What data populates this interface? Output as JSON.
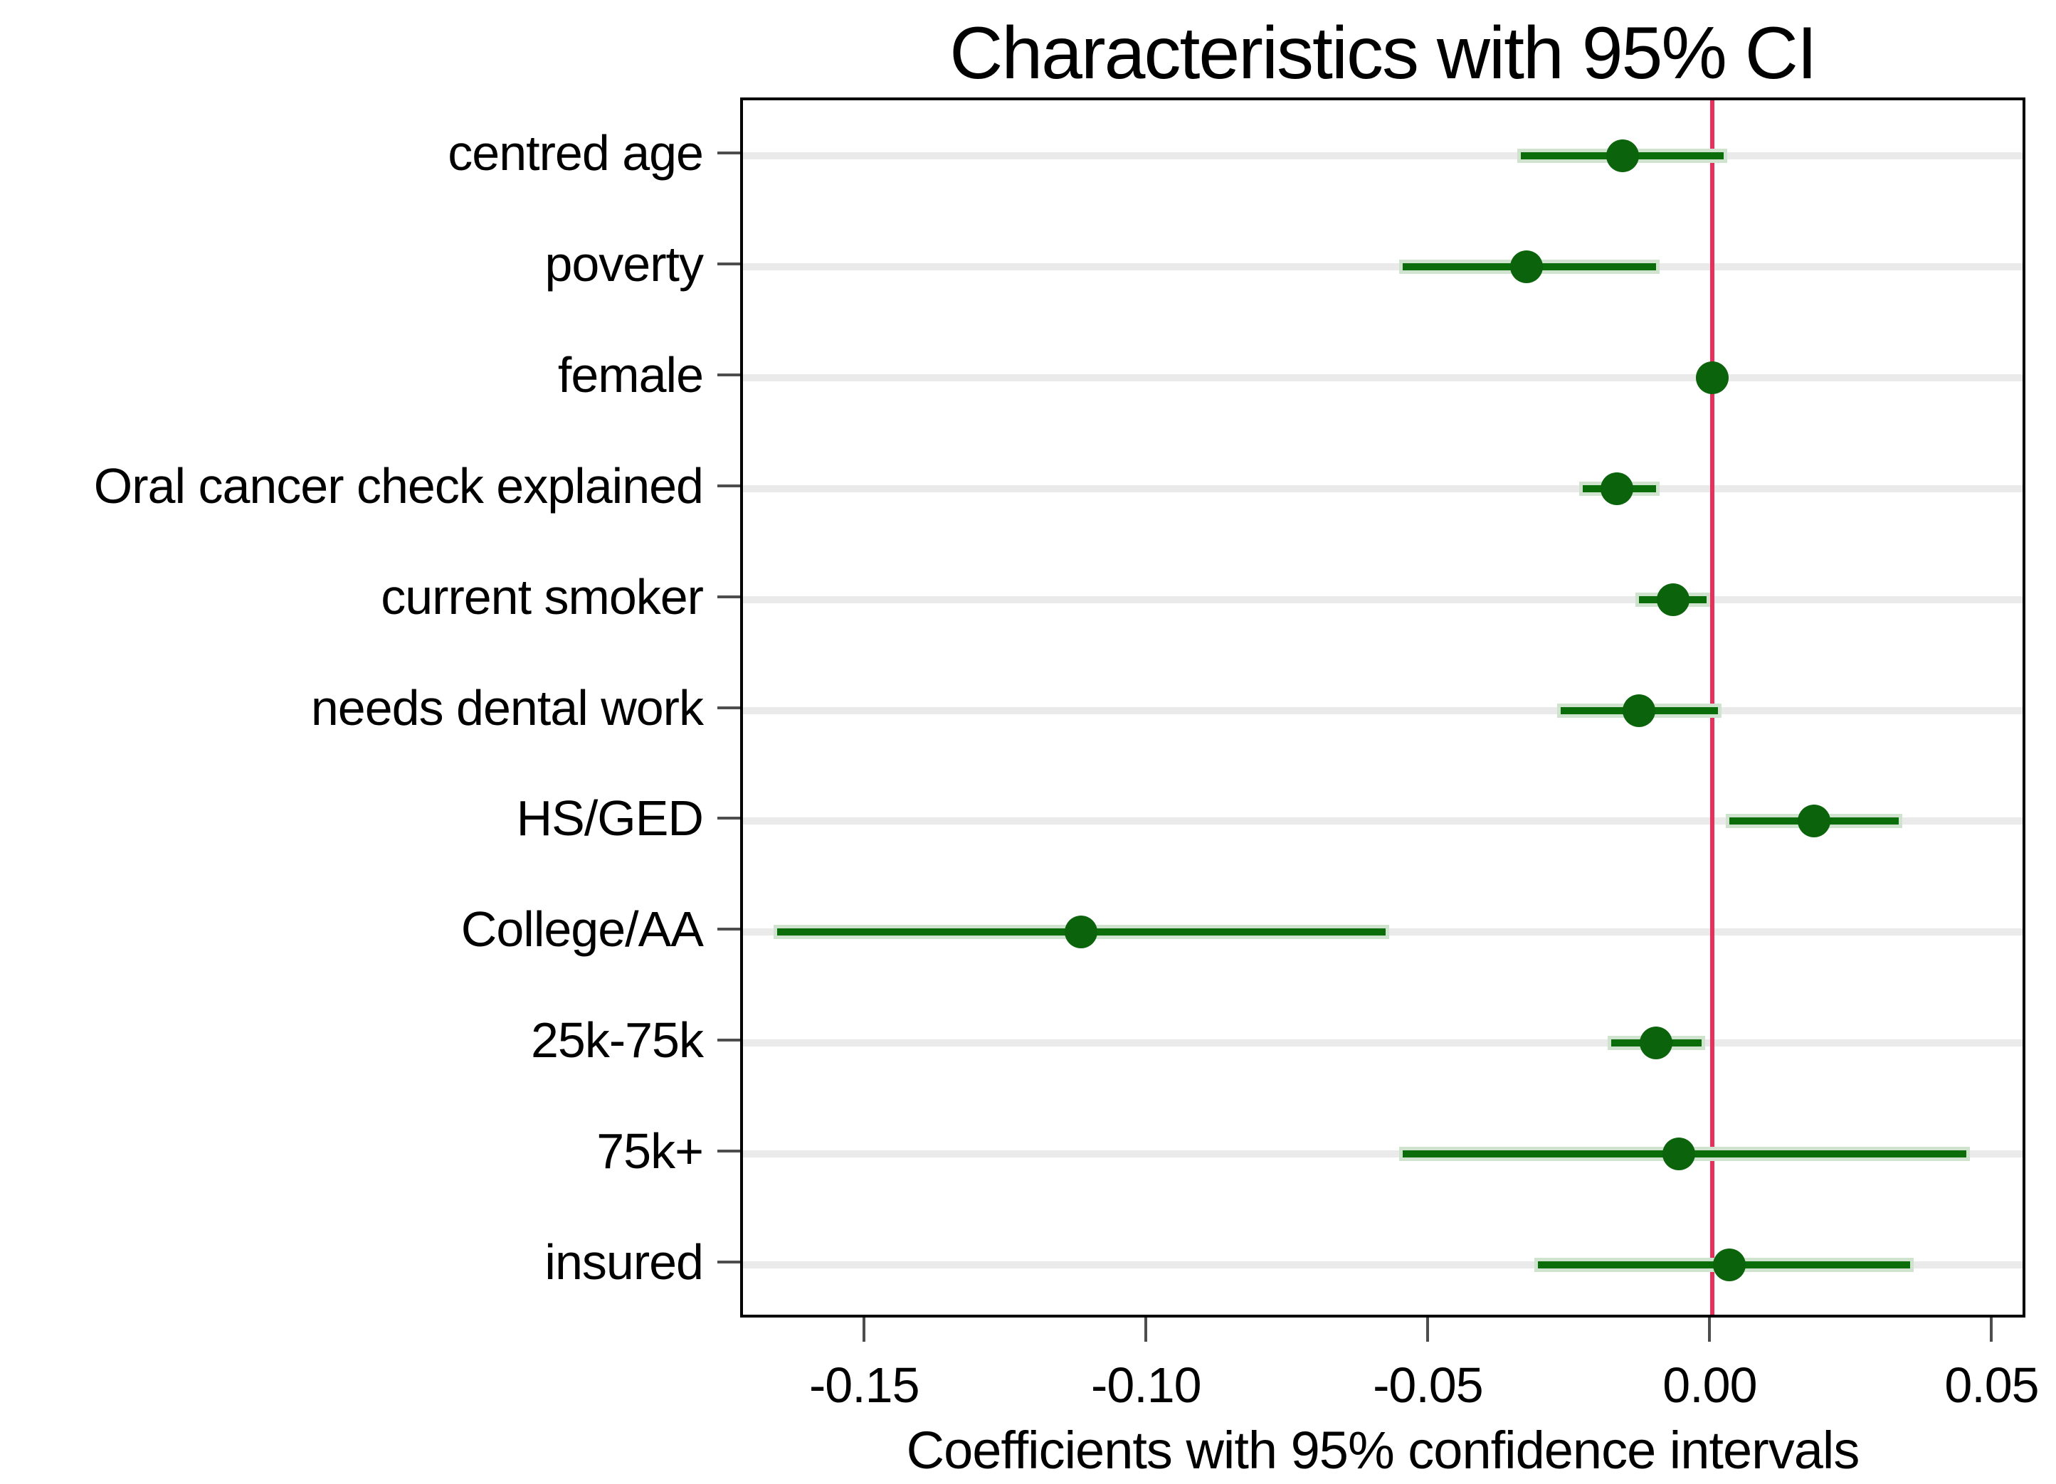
{
  "title": "Characteristics with 95% CI",
  "xlabel": "Coefficients with 95% confidence intervals",
  "colors": {
    "background": "#ffffff",
    "text": "#000000",
    "plot_border": "#000000",
    "tick": "#4d4d4d",
    "gridline": "#eaeaea",
    "ci_line": "#0a6d0a",
    "ci_halo": "#cfe3cf",
    "dot": "#0b630b",
    "reference_line": "#e8305c"
  },
  "chart_data": {
    "type": "scatter",
    "subtype": "coefficient-plot-horizontal-ci",
    "title": "Characteristics with 95% CI",
    "xlabel": "Coefficients with 95% confidence intervals",
    "categories": [
      "centred age",
      "poverty",
      "female",
      "Oral cancer check explained",
      "current smoker",
      "needs dental work",
      "HS/GED",
      "College/AA",
      "25k-75k",
      "75k+",
      "insured"
    ],
    "points": [
      {
        "label": "centred age",
        "estimate": -0.016,
        "ci_low": -0.034,
        "ci_high": 0.002
      },
      {
        "label": "poverty",
        "estimate": -0.033,
        "ci_low": -0.055,
        "ci_high": -0.01
      },
      {
        "label": "female",
        "estimate": 0.0,
        "ci_low": -0.001,
        "ci_high": 0.002
      },
      {
        "label": "Oral cancer check explained",
        "estimate": -0.017,
        "ci_low": -0.023,
        "ci_high": -0.01
      },
      {
        "label": "current smoker",
        "estimate": -0.007,
        "ci_low": -0.013,
        "ci_high": -0.001
      },
      {
        "label": "needs dental work",
        "estimate": -0.013,
        "ci_low": -0.027,
        "ci_high": 0.001
      },
      {
        "label": "HS/GED",
        "estimate": 0.018,
        "ci_low": 0.003,
        "ci_high": 0.033
      },
      {
        "label": "College/AA",
        "estimate": -0.112,
        "ci_low": -0.166,
        "ci_high": -0.058
      },
      {
        "label": "25k-75k",
        "estimate": -0.01,
        "ci_low": -0.018,
        "ci_high": -0.002
      },
      {
        "label": "75k+",
        "estimate": -0.006,
        "ci_low": -0.055,
        "ci_high": 0.045
      },
      {
        "label": "insured",
        "estimate": 0.003,
        "ci_low": -0.031,
        "ci_high": 0.035
      }
    ],
    "x_ticks": [
      -0.15,
      -0.1,
      -0.05,
      0.0,
      0.05
    ],
    "x_tick_labels": [
      "-0.15",
      "-0.10",
      "-0.05",
      "0.00",
      "0.05"
    ],
    "xlim": [
      -0.172,
      0.056
    ],
    "refline_x": 0,
    "grid": true,
    "legend_position": "none"
  }
}
